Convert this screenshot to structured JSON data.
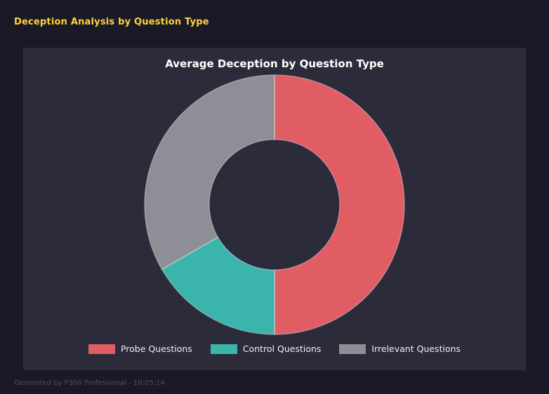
{
  "page": {
    "title": "Deception Analysis by Question Type",
    "footer": "Generated by P300 Professional - 10:05:14"
  },
  "colors": {
    "background": "#191927",
    "card": "#2b2b3a",
    "accent_yellow": "#ffd43b",
    "title_text": "#ffffff",
    "legend_text": "#f0f0f0",
    "footer_text": "#4e4e5e"
  },
  "chart_data": {
    "type": "pie",
    "subtype": "donut",
    "title": "Average Deception by Question Type",
    "labels": [
      "Probe Questions",
      "Control Questions",
      "Irrelevant Questions"
    ],
    "values": [
      50.0,
      16.7,
      33.3
    ],
    "units": "percent",
    "colors": [
      "#e15d64",
      "#3bb5ac",
      "#8e8e96"
    ],
    "start_angle_deg": 0,
    "direction": "clockwise",
    "inner_radius_ratio": 0.5,
    "legend_position": "bottom",
    "wedge_edge_color": "rgba(255,255,255,0.35)"
  }
}
